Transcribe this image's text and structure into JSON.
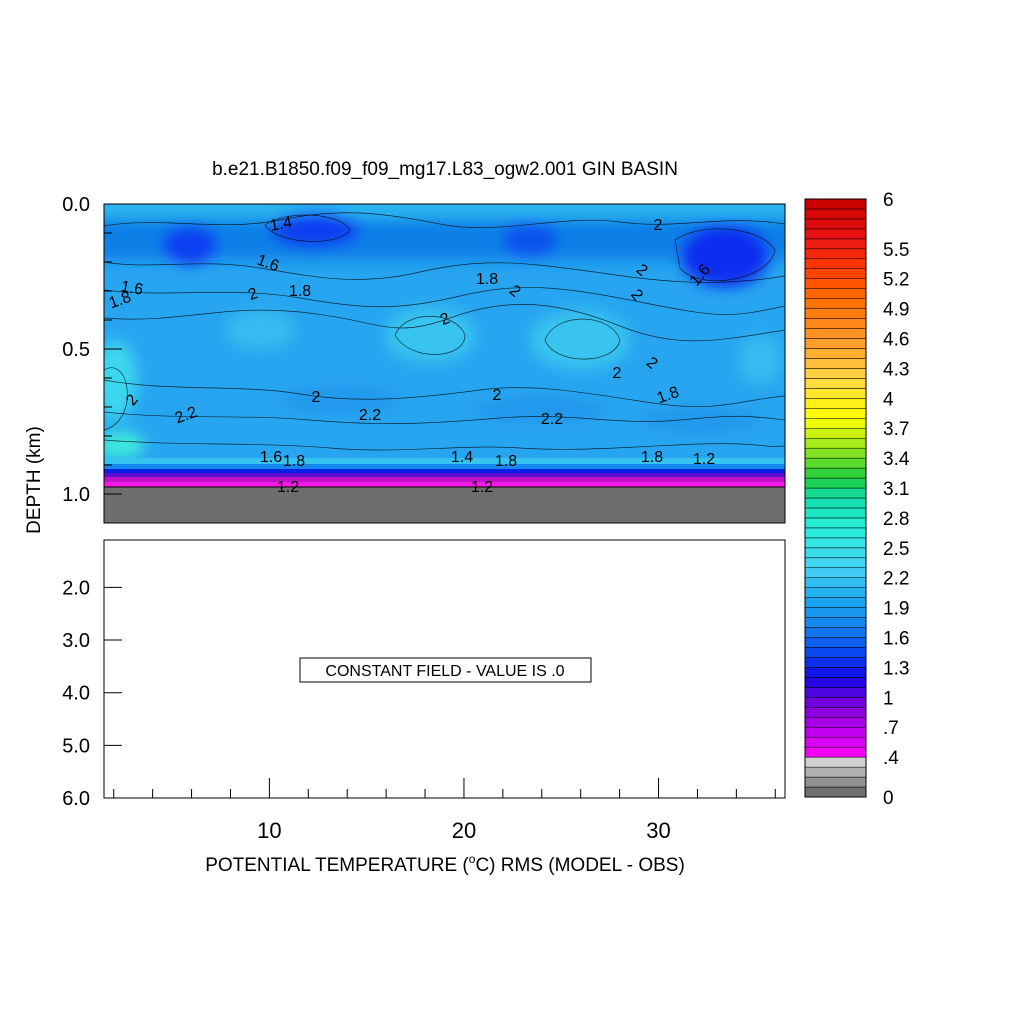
{
  "chart_data": {
    "type": "heatmap",
    "title": "b.e21.B1850.f09_f09_mg17.L83_ogw2.001 GIN BASIN",
    "xlabel": "POTENTIAL TEMPERATURE (°C) RMS (MODEL - OBS)",
    "ylabel": "DEPTH (km)",
    "xlim": [
      1.5,
      36.5
    ],
    "x_ticks": [
      "10",
      "20",
      "30"
    ],
    "upper_panel": {
      "ylim": [
        0.0,
        1.1
      ],
      "y_ticks": [
        "0.0",
        "0.5",
        "1.0"
      ],
      "bottom_depth_km": 0.98,
      "contour_labels": [
        "1.4",
        "1.6",
        "1.6",
        "1.8",
        "1.8",
        "1.8",
        "2",
        "2",
        "2",
        "2",
        "2",
        "2",
        "2",
        "2",
        "2",
        "2",
        "2",
        "2.2",
        "2.2",
        "2.2",
        "1.6",
        "1.8",
        "1.6",
        "1.4",
        "1.8",
        "1.8",
        "1.8",
        "1.2",
        "1.2",
        "1.2"
      ],
      "background_value": 1.9
    },
    "lower_panel": {
      "ylim": [
        1.1,
        6.0
      ],
      "y_ticks": [
        "2.0",
        "3.0",
        "4.0",
        "5.0",
        "6.0"
      ],
      "message": "CONSTANT FIELD - VALUE IS .0"
    },
    "colorbar": {
      "min": 0,
      "max": 6,
      "step": 0.1,
      "labels": [
        "6",
        "5.5",
        "5.2",
        "4.9",
        "4.6",
        "4.3",
        "4",
        "3.7",
        "3.4",
        "3.1",
        "2.8",
        "2.5",
        "2.2",
        "1.9",
        "1.6",
        "1.3",
        "1",
        ".7",
        ".4",
        "0"
      ],
      "gray_below": 0.4
    }
  }
}
